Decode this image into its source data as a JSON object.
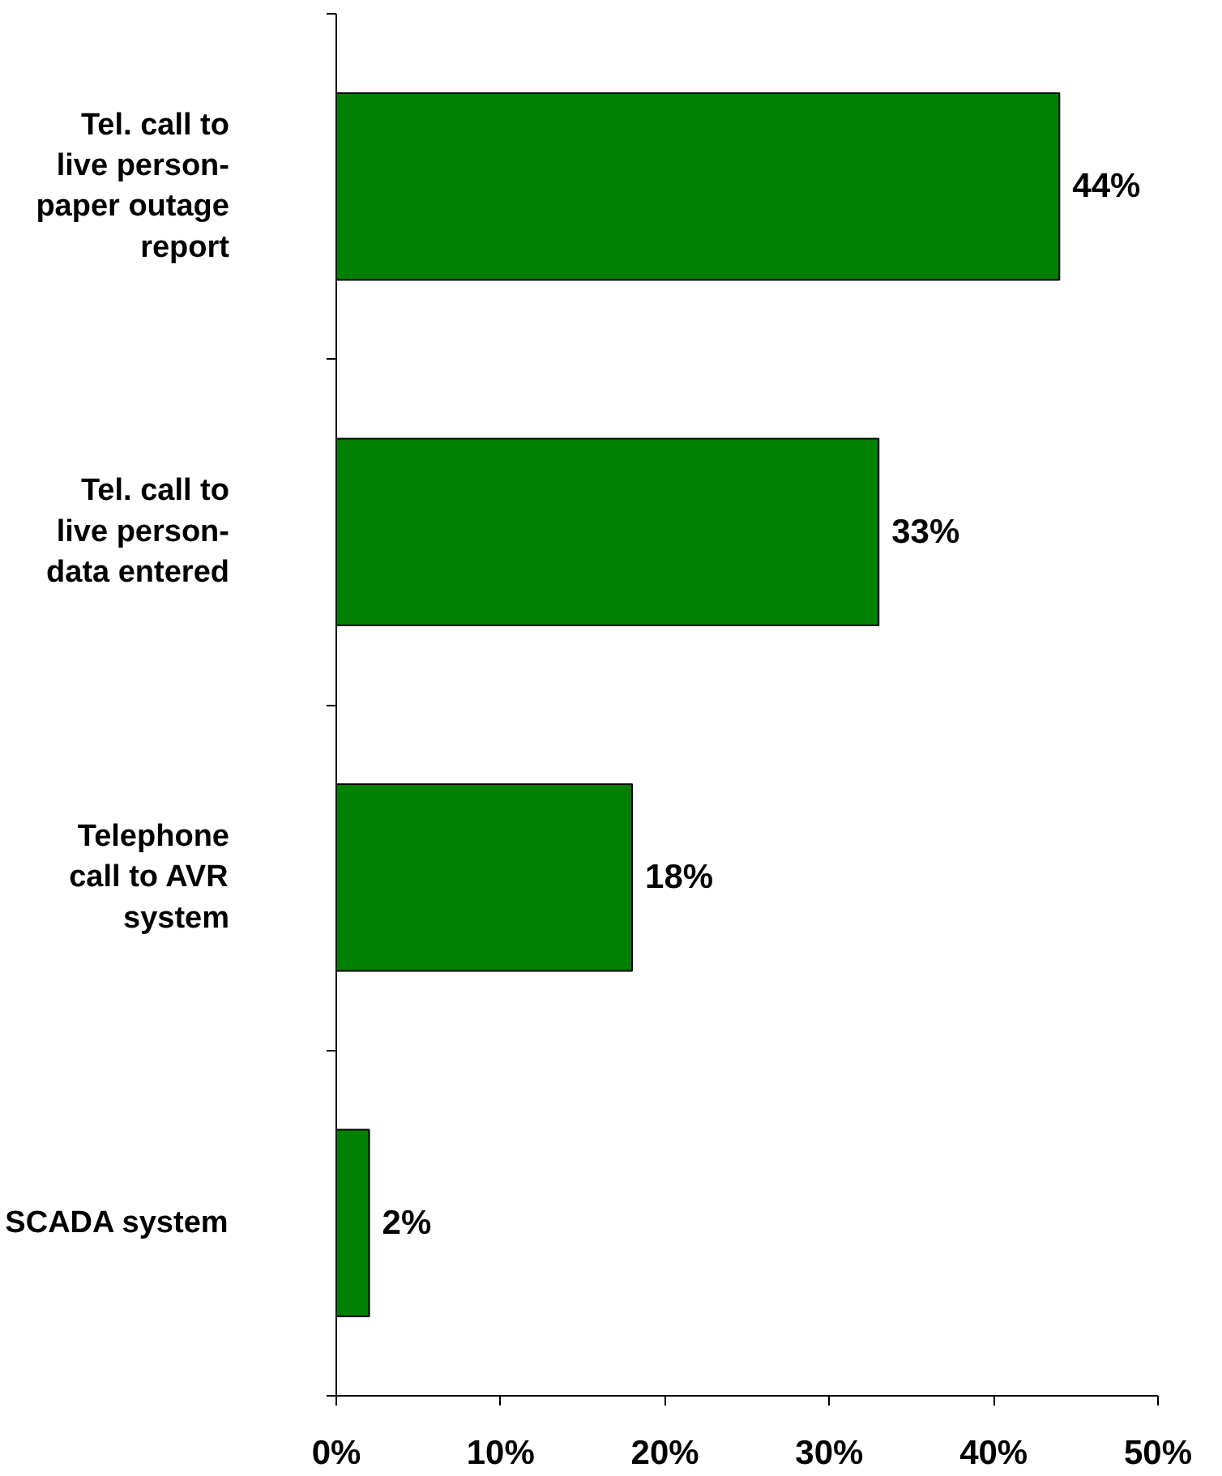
{
  "chart_data": {
    "type": "bar",
    "orientation": "horizontal",
    "categories": [
      "Tel. call to live person-paper outage report",
      "Tel. call to live person-data entered",
      "Telephone call to AVR system",
      "SCADA system"
    ],
    "values": [
      44,
      33,
      18,
      2
    ],
    "value_labels": [
      "44%",
      "33%",
      "18%",
      "2%"
    ],
    "color": "#008000",
    "xlim": [
      0,
      50
    ],
    "xticks": [
      {
        "value": 0,
        "label": "0%"
      },
      {
        "value": 10,
        "label": "10%"
      },
      {
        "value": 20,
        "label": "20%"
      },
      {
        "value": 30,
        "label": "30%"
      },
      {
        "value": 40,
        "label": "40%"
      },
      {
        "value": 50,
        "label": "50%"
      }
    ],
    "grid": false
  }
}
